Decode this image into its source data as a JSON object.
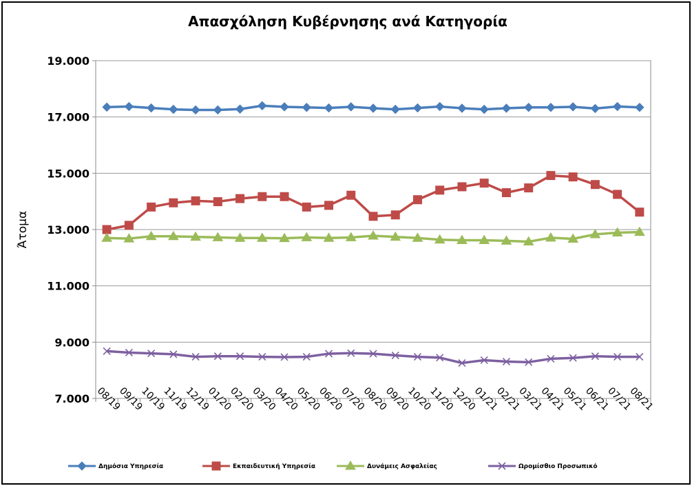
{
  "chart_data": {
    "type": "line",
    "title": "Απασχόληση Κυβέρνησης ανά Κατηγορία",
    "xlabel": "",
    "ylabel": "Άτομα",
    "ylim": [
      7000,
      19000
    ],
    "yticks": [
      7000,
      9000,
      11000,
      13000,
      15000,
      17000,
      19000
    ],
    "ytick_labels": [
      "7.000",
      "9.000",
      "11.000",
      "13.000",
      "15.000",
      "17.000",
      "19.000"
    ],
    "grid": true,
    "legend": "bottom",
    "categories": [
      "08/19",
      "09/19",
      "10/19",
      "11/19",
      "12/19",
      "01/20",
      "02/20",
      "03/20",
      "04/20",
      "05/20",
      "06/20",
      "07/20",
      "08/20",
      "09/20",
      "10/20",
      "11/20",
      "12/20",
      "01/21",
      "02/21",
      "03/21",
      "04/21",
      "05/21",
      "06/21",
      "07/21",
      "08/21"
    ],
    "series": [
      {
        "name": "Δημόσια Υπηρεσία",
        "color": "#4a7ebb",
        "marker": "diamond",
        "values": [
          17350,
          17370,
          17320,
          17270,
          17250,
          17250,
          17280,
          17400,
          17360,
          17340,
          17320,
          17360,
          17310,
          17270,
          17320,
          17370,
          17310,
          17270,
          17310,
          17340,
          17340,
          17360,
          17300,
          17370,
          17340
        ]
      },
      {
        "name": "Εκπαιδευτική Υπηρεσία",
        "color": "#be4b48",
        "marker": "square",
        "values": [
          13000,
          13150,
          13800,
          13950,
          14020,
          13990,
          14100,
          14170,
          14170,
          13800,
          13860,
          14220,
          13470,
          13520,
          14060,
          14400,
          14520,
          14650,
          14310,
          14480,
          14920,
          14870,
          14600,
          14250,
          13620
        ]
      },
      {
        "name": "Δυνάμεις Ασφαλείας",
        "color": "#9bbb59",
        "marker": "triangle",
        "values": [
          12700,
          12680,
          12760,
          12760,
          12740,
          12720,
          12700,
          12700,
          12690,
          12720,
          12700,
          12720,
          12780,
          12740,
          12700,
          12640,
          12620,
          12620,
          12600,
          12570,
          12710,
          12670,
          12830,
          12890,
          12910
        ]
      },
      {
        "name": "Ωρομίσθιο Προσωπικό",
        "color": "#7d60a0",
        "marker": "x",
        "values": [
          8680,
          8630,
          8600,
          8570,
          8480,
          8500,
          8500,
          8480,
          8470,
          8480,
          8590,
          8610,
          8590,
          8530,
          8480,
          8450,
          8260,
          8360,
          8310,
          8290,
          8410,
          8440,
          8500,
          8480,
          8480
        ]
      }
    ]
  }
}
